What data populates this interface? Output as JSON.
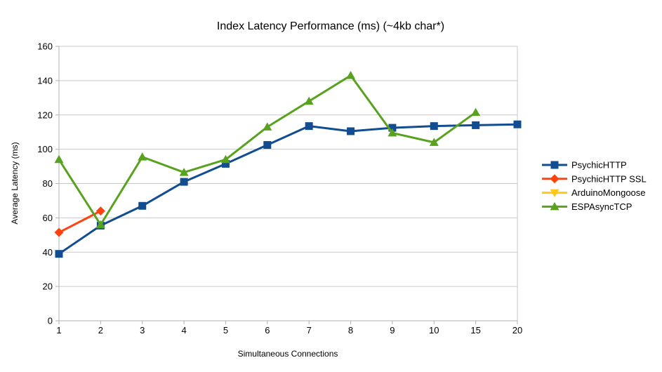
{
  "chart_data": {
    "type": "line",
    "title": "Index Latency Performance (ms) (~4kb char*)",
    "xlabel": "Simultaneous Connections",
    "ylabel": "Average Latency (ms)",
    "categories": [
      "1",
      "2",
      "3",
      "4",
      "5",
      "6",
      "7",
      "8",
      "9",
      "10",
      "15",
      "20"
    ],
    "ylim": [
      0,
      160
    ],
    "ytick_step": 20,
    "yticks": [
      0,
      20,
      40,
      60,
      80,
      100,
      120,
      140,
      160
    ],
    "grid": true,
    "legend_position": "right",
    "colors": {
      "grid": "#c9c9c9",
      "axis": "#b0b0b0",
      "background": "#ffffff",
      "text": "#000000"
    },
    "series": [
      {
        "name": "PsychicHTTP",
        "color": "#124c91",
        "marker": "square",
        "values": [
          39,
          55.5,
          67,
          81,
          91.5,
          102.5,
          113.5,
          110.5,
          112.5,
          113.5,
          114,
          114.5
        ]
      },
      {
        "name": "PsychicHTTP SSL",
        "color": "#ff420e",
        "marker": "diamond",
        "values": [
          51.5,
          64,
          null,
          null,
          null,
          null,
          null,
          null,
          null,
          null,
          null,
          null
        ]
      },
      {
        "name": "ArduinoMongoose",
        "color": "#ffc916",
        "marker": "triangle-down",
        "values": [
          null,
          null,
          null,
          null,
          null,
          null,
          null,
          null,
          null,
          null,
          null,
          null
        ]
      },
      {
        "name": "ESPAsyncTCP",
        "color": "#58a21f",
        "marker": "triangle-up",
        "values": [
          94,
          56,
          95.5,
          86.5,
          94,
          113,
          128,
          143,
          109.5,
          104,
          121.5,
          null
        ]
      }
    ]
  }
}
